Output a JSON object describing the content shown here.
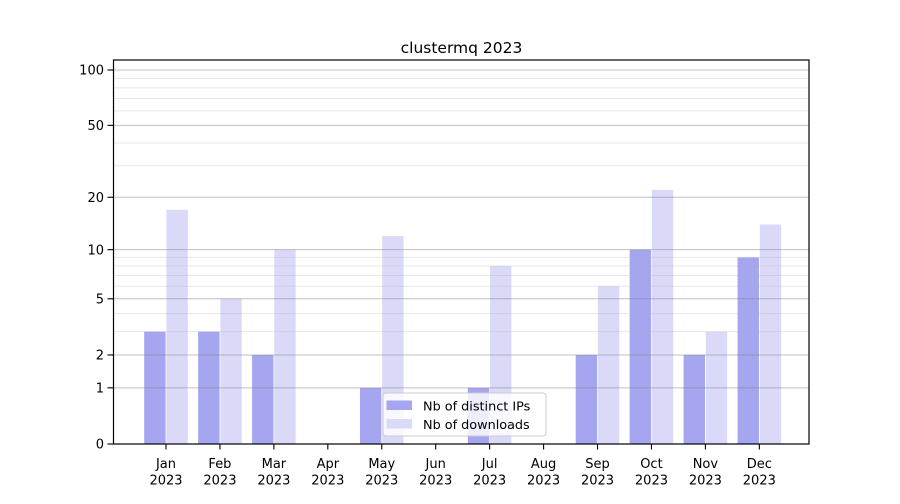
{
  "title": "clustermq 2023",
  "chart_data": {
    "type": "bar",
    "title": "clustermq 2023",
    "x_tick_labels": [
      [
        "Jan",
        "2023"
      ],
      [
        "Feb",
        "2023"
      ],
      [
        "Mar",
        "2023"
      ],
      [
        "Apr",
        "2023"
      ],
      [
        "May",
        "2023"
      ],
      [
        "Jun",
        "2023"
      ],
      [
        "Jul",
        "2023"
      ],
      [
        "Aug",
        "2023"
      ],
      [
        "Sep",
        "2023"
      ],
      [
        "Oct",
        "2023"
      ],
      [
        "Nov",
        "2023"
      ],
      [
        "Dec",
        "2023"
      ]
    ],
    "series": [
      {
        "name": "Nb of distinct IPs",
        "color": "#a5a5f0",
        "values": [
          3,
          3,
          2,
          0,
          1,
          0,
          1,
          0,
          2,
          10,
          2,
          9
        ]
      },
      {
        "name": "Nb of downloads",
        "color": "#dadaf8",
        "values": [
          17,
          5,
          10,
          0,
          12,
          0,
          8,
          0,
          6,
          22,
          3,
          14
        ]
      }
    ],
    "y_axis": {
      "scale": "log1p",
      "major_ticks": [
        0,
        1,
        2,
        5,
        10,
        20,
        50,
        100
      ],
      "minor_gridlines": [
        3,
        4,
        6,
        7,
        8,
        9,
        30,
        40,
        60,
        70,
        80,
        90
      ],
      "range": [
        0,
        100
      ]
    },
    "xlabel": "",
    "ylabel": "",
    "grid": {
      "horizontal_major": true,
      "horizontal_minor": true,
      "vertical": false
    },
    "legend": {
      "position": "bottom-center",
      "framed": true
    },
    "colors": {
      "background": "#ffffff",
      "spine": "#000000",
      "grid_major": "#c3c3c3",
      "grid_minor": "#e9e9e9",
      "legend_border": "#cccccc",
      "legend_background": "rgba(255,255,255,0.8)",
      "tick_text": "#000000"
    }
  }
}
